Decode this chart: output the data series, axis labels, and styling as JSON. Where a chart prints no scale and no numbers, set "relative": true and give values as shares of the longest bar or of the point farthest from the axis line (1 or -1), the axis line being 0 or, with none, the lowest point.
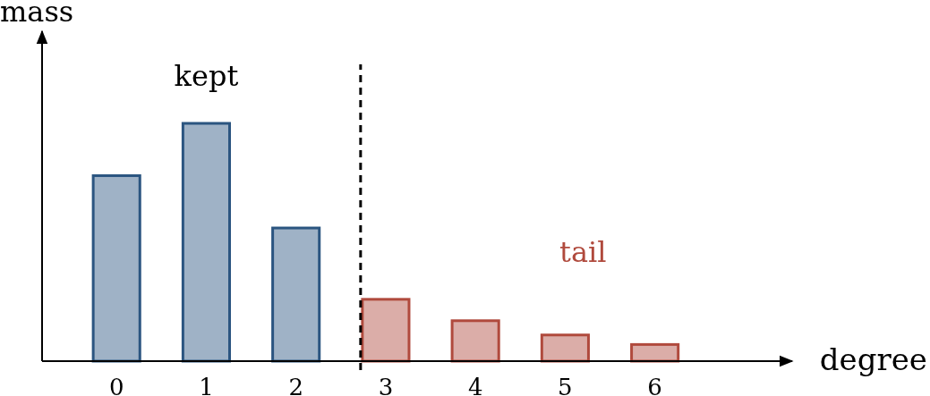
{
  "chart_data": {
    "type": "bar",
    "relative": true,
    "xlabel": "degree",
    "ylabel": "mass",
    "x": [
      0,
      1,
      2,
      3,
      4,
      5,
      6
    ],
    "xlim": [
      -0.83,
      7.53
    ],
    "xticks": [
      0,
      1,
      2,
      3,
      4,
      5,
      6
    ],
    "series": [
      {
        "name": "kept",
        "color": "#2b5580",
        "values": [
          0.78,
          1,
          0.56,
          null,
          null,
          null,
          null
        ]
      },
      {
        "name": "tail",
        "color": "#b04a3d",
        "values": [
          null,
          null,
          null,
          0.26,
          0.17,
          0.11,
          0.07
        ]
      }
    ],
    "ref_lines": [
      {
        "axis": "x",
        "value": 2.72,
        "line_style": "dashed",
        "color": "#000000"
      }
    ],
    "grid": false
  }
}
